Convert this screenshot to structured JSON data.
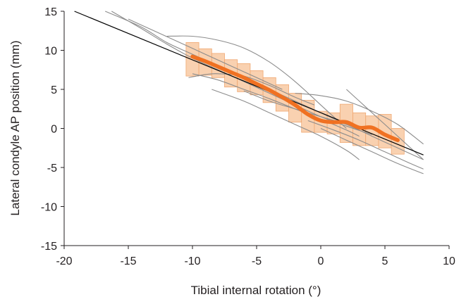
{
  "chart_data": {
    "type": "scatter",
    "title": "",
    "xlabel": "Tibial internal rotation (°)",
    "ylabel": "Lateral condyle AP position (mm)",
    "xlim": [
      -20,
      10
    ],
    "ylim": [
      -15,
      15
    ],
    "x_ticks": [
      -20,
      -15,
      -10,
      -5,
      0,
      5,
      10
    ],
    "y_ticks": [
      -15,
      -10,
      -5,
      0,
      5,
      10,
      15
    ],
    "x_tick_labels": [
      "-20",
      "-15",
      "-10",
      "-5",
      "0",
      "5",
      "10"
    ],
    "y_tick_labels": [
      "-15",
      "-10",
      "-5",
      "0",
      "5",
      "10",
      "15"
    ],
    "grid": false,
    "legend": false,
    "colors": {
      "mean": "#f07122",
      "box_fill": "#f8c9a2",
      "box_stroke": "#f0a872",
      "subject": "#8c8c8c",
      "regression": "#000000",
      "axis": "#231f20"
    },
    "regression_line": {
      "x": [
        -19.2,
        8
      ],
      "y": [
        15,
        -3.4
      ]
    },
    "mean_curve": {
      "x": [
        -10,
        -9,
        -8,
        -7,
        -6,
        -5,
        -4,
        -3,
        -2,
        -1,
        0,
        1,
        2,
        3,
        4,
        5,
        6
      ],
      "y": [
        9.2,
        8.6,
        7.9,
        7.2,
        6.5,
        5.7,
        4.9,
        4.0,
        3.0,
        1.8,
        1.0,
        0.8,
        0.8,
        0.1,
        0.1,
        -0.8,
        -1.5
      ]
    },
    "iqr_boxes": [
      {
        "x": -10,
        "low": 6.7,
        "high": 11.0
      },
      {
        "x": -9,
        "low": 6.8,
        "high": 10.2
      },
      {
        "x": -8,
        "low": 6.5,
        "high": 9.6
      },
      {
        "x": -7,
        "low": 5.3,
        "high": 8.8
      },
      {
        "x": -6,
        "low": 4.7,
        "high": 8.3
      },
      {
        "x": -5,
        "low": 4.3,
        "high": 7.4
      },
      {
        "x": -4,
        "low": 3.3,
        "high": 6.5
      },
      {
        "x": -3,
        "low": 2.2,
        "high": 5.6
      },
      {
        "x": -2,
        "low": 0.8,
        "high": 4.5
      },
      {
        "x": -1,
        "low": -0.5,
        "high": 3.6
      },
      {
        "x": 0,
        "low": -0.5,
        "high": 2.2
      },
      {
        "x": 1,
        "low": -0.7,
        "high": 2.0
      },
      {
        "x": 2,
        "low": -1.8,
        "high": 3.1
      },
      {
        "x": 3,
        "low": -2.2,
        "high": 2.0
      },
      {
        "x": 4,
        "low": -2.2,
        "high": 1.6
      },
      {
        "x": 5,
        "low": -2.5,
        "high": 1.8
      },
      {
        "x": 6,
        "low": -3.3,
        "high": 0.0
      }
    ],
    "subject_curves": [
      {
        "x": [
          -12,
          -10,
          -8,
          -6,
          -4,
          -2,
          0,
          2
        ],
        "y": [
          11.8,
          11.8,
          11.3,
          10.3,
          8.5,
          6.0,
          3.0,
          0.0
        ]
      },
      {
        "x": [
          -16.8,
          -14,
          -12,
          -10,
          -8,
          -6,
          -4,
          -2,
          0,
          2
        ],
        "y": [
          15.0,
          13.0,
          11.0,
          9.5,
          8.0,
          6.5,
          5.0,
          3.5,
          2.0,
          0.5
        ]
      },
      {
        "x": [
          -16.3,
          -14,
          -12,
          -10,
          -8,
          -6,
          -4,
          -2,
          0,
          2,
          4
        ],
        "y": [
          15.0,
          12.8,
          10.8,
          9.0,
          7.5,
          6.0,
          4.5,
          3.0,
          1.5,
          0.3,
          -0.8
        ]
      },
      {
        "x": [
          -15,
          -13,
          -11,
          -9,
          -7,
          -5,
          -3
        ],
        "y": [
          14.0,
          12.5,
          11.0,
          9.5,
          8.0,
          6.5,
          5.0
        ]
      },
      {
        "x": [
          -10.3,
          -9,
          -8,
          -6,
          -4,
          -2,
          -0.5
        ],
        "y": [
          6.5,
          6.9,
          7.0,
          6.7,
          5.5,
          4.0,
          3.0
        ]
      },
      {
        "x": [
          -10,
          -8,
          -6,
          -4,
          -2,
          0,
          2,
          3
        ],
        "y": [
          7.0,
          6.2,
          5.0,
          3.8,
          2.5,
          1.2,
          -0.2,
          -1.0
        ]
      },
      {
        "x": [
          -6,
          -4,
          -2,
          0,
          2,
          4,
          6,
          8
        ],
        "y": [
          4.8,
          3.5,
          2.5,
          1.5,
          0.5,
          -1.0,
          -2.5,
          -4.0
        ]
      },
      {
        "x": [
          -8.5,
          -6,
          -4,
          -2,
          0,
          2,
          3
        ],
        "y": [
          5.0,
          3.5,
          2.0,
          0.5,
          -1.0,
          -2.8,
          -4.0
        ]
      },
      {
        "x": [
          -2,
          0,
          2,
          4,
          6,
          8
        ],
        "y": [
          4.5,
          4.2,
          3.5,
          2.2,
          0.5,
          -2.0
        ]
      },
      {
        "x": [
          2,
          3,
          4,
          5,
          6,
          7,
          8
        ],
        "y": [
          5.0,
          3.5,
          2.0,
          0.5,
          -1.0,
          -2.5,
          -4.0
        ]
      },
      {
        "x": [
          -1,
          1,
          3,
          5,
          7,
          8
        ],
        "y": [
          1.0,
          -0.2,
          -1.5,
          -3.0,
          -4.5,
          -5.2
        ]
      },
      {
        "x": [
          0,
          2,
          4,
          6,
          8
        ],
        "y": [
          0.0,
          -1.5,
          -3.0,
          -4.5,
          -5.8
        ]
      }
    ]
  }
}
